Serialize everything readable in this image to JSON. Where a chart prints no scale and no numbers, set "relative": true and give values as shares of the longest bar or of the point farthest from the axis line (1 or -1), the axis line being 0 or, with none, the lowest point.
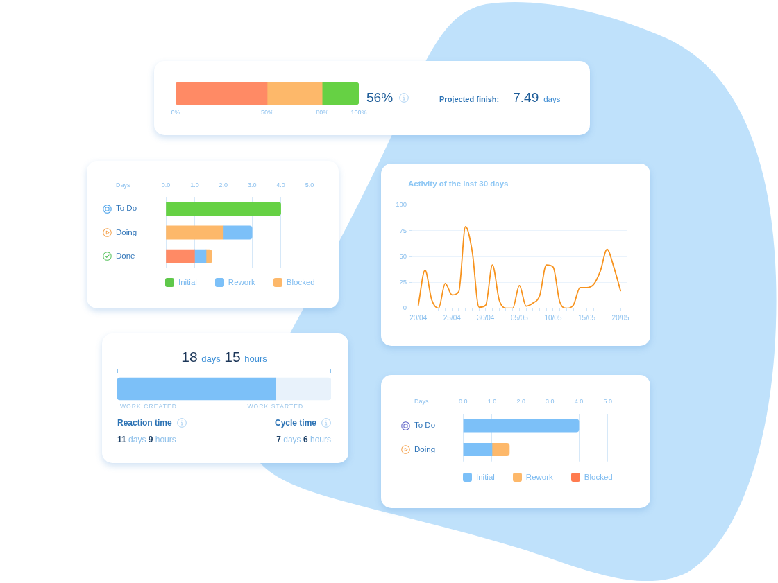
{
  "chart_data": [
    {
      "type": "bar",
      "orientation": "horizontal",
      "stacked": true,
      "categories": [
        null
      ],
      "series": [
        {
          "color": "#ff8a65",
          "values": [
            50
          ]
        },
        {
          "color": "#fdb86a",
          "values": [
            30
          ]
        },
        {
          "color": "#66d144",
          "values": [
            20
          ]
        }
      ],
      "xlim": [
        0,
        100
      ],
      "xticks": [
        {
          "value": 0,
          "label": "0%"
        },
        {
          "value": 50,
          "label": "50%"
        },
        {
          "value": 80,
          "label": "80%"
        },
        {
          "value": 100,
          "label": "100%"
        }
      ],
      "tick_labels": "x",
      "annotations": [
        "56%",
        "Projected finish:",
        "7.49",
        "days"
      ]
    },
    {
      "type": "bar",
      "orientation": "horizontal",
      "stacked": true,
      "xlabel": "Days",
      "categories": [
        "To Do",
        "Doing",
        "Done"
      ],
      "series": [
        {
          "name": "Initial",
          "color": "#5fc84a",
          "colors": [
            "#66d144",
            "#fdb86a",
            "#ff8a65"
          ],
          "values": [
            4.0,
            2.0,
            1.0
          ]
        },
        {
          "name": "Rework",
          "color": "#7cc0f8",
          "values": [
            null,
            1.0,
            0.4
          ]
        },
        {
          "name": "Blocked",
          "color": "#fdb86a",
          "values": [
            null,
            null,
            0.2
          ]
        }
      ],
      "xlim": [
        0,
        5
      ],
      "xticks": [
        {
          "value": 0,
          "label": "0.0"
        },
        {
          "value": 1,
          "label": "1.0"
        },
        {
          "value": 2,
          "label": "2.0"
        },
        {
          "value": 3,
          "label": "3.0"
        },
        {
          "value": 4,
          "label": "4.0"
        },
        {
          "value": 5,
          "label": "5.0"
        }
      ],
      "grid": "x",
      "legend": "bottom"
    },
    {
      "type": "line",
      "title": "Activity of the last 30 days",
      "x": [
        "--04-20",
        "--04-21",
        "--04-22",
        "--04-23",
        "--04-24",
        "--04-25",
        "--04-26",
        "--04-27",
        "--04-28",
        "--04-29",
        "--04-30",
        "--05-01",
        "--05-02",
        "--05-03",
        "--05-04",
        "--05-05",
        "--05-06",
        "--05-07",
        "--05-08",
        "--05-09",
        "--05-10",
        "--05-11",
        "--05-12",
        "--05-13",
        "--05-14",
        "--05-15",
        "--05-16",
        "--05-17",
        "--05-18",
        "--05-19",
        "--05-20"
      ],
      "series": [
        {
          "color": "#f7931e",
          "values": [
            3,
            37,
            8,
            0,
            24,
            13,
            16,
            79,
            55,
            1,
            3,
            42,
            8,
            0,
            0,
            22,
            2,
            5,
            12,
            42,
            40,
            6,
            0,
            3,
            20,
            20,
            23,
            36,
            57,
            40,
            17
          ]
        }
      ],
      "xlim": [
        "--04-19",
        "--05-21"
      ],
      "xticks": [
        {
          "value": "--04-20",
          "label": "20/04"
        },
        {
          "value": "--04-21",
          "label": null
        },
        {
          "value": "--04-22",
          "label": null
        },
        {
          "value": "--04-23",
          "label": null
        },
        {
          "value": "--04-24",
          "label": null
        },
        {
          "value": "--04-25",
          "label": "25/04"
        },
        {
          "value": "--04-26",
          "label": null
        },
        {
          "value": "--04-27",
          "label": null
        },
        {
          "value": "--04-28",
          "label": null
        },
        {
          "value": "--04-29",
          "label": null
        },
        {
          "value": "--04-30",
          "label": "30/04"
        },
        {
          "value": "--05-01",
          "label": null
        },
        {
          "value": "--05-02",
          "label": null
        },
        {
          "value": "--05-03",
          "label": null
        },
        {
          "value": "--05-04",
          "label": null
        },
        {
          "value": "--05-05",
          "label": "05/05"
        },
        {
          "value": "--05-06",
          "label": null
        },
        {
          "value": "--05-07",
          "label": null
        },
        {
          "value": "--05-08",
          "label": null
        },
        {
          "value": "--05-09",
          "label": null
        },
        {
          "value": "--05-10",
          "label": "10/05"
        },
        {
          "value": "--05-11",
          "label": null
        },
        {
          "value": "--05-12",
          "label": null
        },
        {
          "value": "--05-13",
          "label": null
        },
        {
          "value": "--05-14",
          "label": null
        },
        {
          "value": "--05-15",
          "label": "15/05"
        },
        {
          "value": "--05-16",
          "label": null
        },
        {
          "value": "--05-17",
          "label": null
        },
        {
          "value": "--05-18",
          "label": null
        },
        {
          "value": "--05-19",
          "label": null
        },
        {
          "value": "--05-20",
          "label": "20/05"
        }
      ],
      "ylim": [
        0,
        100
      ],
      "yticks": [
        0,
        25,
        50,
        75,
        100
      ],
      "grid": "y"
    },
    {
      "type": "bar",
      "orientation": "horizontal",
      "stacked": true,
      "relative": true,
      "title": "18 days 15 hours",
      "categories": [
        null
      ],
      "series": [
        {
          "color": "#7cc0f8",
          "values": [
            0.74
          ]
        },
        {
          "color": "#e8f2fb",
          "values": [
            0.26
          ]
        }
      ],
      "tick_labels": false,
      "annotations": [
        "WORK CREATED",
        "WORK STARTED",
        "Reaction time",
        "11 days 9 hours",
        "Cycle time",
        "7 days 6 hours"
      ]
    },
    {
      "type": "bar",
      "orientation": "horizontal",
      "stacked": true,
      "xlabel": "Days",
      "categories": [
        "To Do",
        "Doing"
      ],
      "series": [
        {
          "name": "Initial",
          "color": "#7cc0f8",
          "values": [
            4.0,
            1.0
          ]
        },
        {
          "name": "Rework",
          "color": "#fdb86a",
          "values": [
            null,
            0.6
          ]
        },
        {
          "name": "Blocked",
          "color": "#ff7b4f",
          "values": [
            null,
            null
          ]
        }
      ],
      "xlim": [
        0,
        5
      ],
      "xticks": [
        {
          "value": 0,
          "label": "0.0"
        },
        {
          "value": 1,
          "label": "1.0"
        },
        {
          "value": 2,
          "label": "2.0"
        },
        {
          "value": 3,
          "label": "3.0"
        },
        {
          "value": 4,
          "label": "4.0"
        },
        {
          "value": 5,
          "label": "5.0"
        }
      ],
      "grid": "x",
      "legend": "bottom"
    }
  ]
}
